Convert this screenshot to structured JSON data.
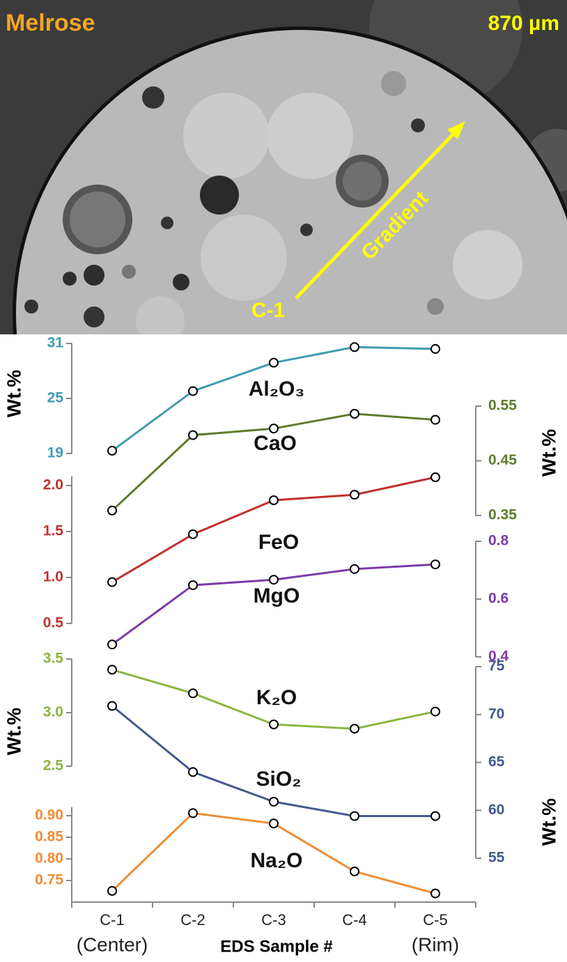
{
  "image": {
    "title": "Melrose",
    "scale": "870 µm",
    "arrow_label": "Gradient",
    "start_label": "C-1"
  },
  "chart_data": {
    "type": "line",
    "categories": [
      "C-1",
      "C-2",
      "C-3",
      "C-4",
      "C-5"
    ],
    "category_notes": [
      "(Center)",
      null,
      null,
      null,
      "(Rim)"
    ],
    "x_label": "EDS Sample #",
    "y_labels": [
      "Wt.%",
      "Wt.%",
      "Wt.%",
      "Wt.%"
    ],
    "series": [
      {
        "name": "Al₂O₃",
        "color": "#3f9bb3",
        "axis": "left",
        "values": [
          19.3,
          25.8,
          28.9,
          30.6,
          30.4
        ],
        "ylim": [
          19,
          31
        ],
        "yticks": [
          19,
          25,
          31
        ]
      },
      {
        "name": "CaO",
        "color": "#5f7a2b",
        "axis": "right",
        "values": [
          0.359,
          0.497,
          0.509,
          0.536,
          0.525
        ],
        "ylim": [
          0.35,
          0.55
        ],
        "yticks": [
          0.35,
          0.45,
          0.55
        ]
      },
      {
        "name": "FeO",
        "color": "#c0302f",
        "axis": "left",
        "values": [
          0.95,
          1.47,
          1.84,
          1.9,
          2.09
        ],
        "ylim": [
          0.5,
          2.1
        ],
        "yticks": [
          0.5,
          {
            "value": 1,
            "label": "1.0"
          },
          1.5,
          {
            "value": 2,
            "label": "2.0"
          }
        ]
      },
      {
        "name": "MgO",
        "color": "#7b3aa8",
        "axis": "right",
        "values": [
          0.443,
          0.648,
          0.667,
          0.704,
          0.72
        ],
        "ylim": [
          0.4,
          0.8
        ],
        "yticks": [
          0.4,
          0.6,
          0.8
        ]
      },
      {
        "name": "K₂O",
        "color": "#8ab540",
        "axis": "left",
        "values": [
          3.4,
          3.18,
          2.89,
          2.85,
          3.01
        ],
        "ylim": [
          2.5,
          3.5
        ],
        "yticks": [
          2.5,
          {
            "value": 3,
            "label": "3.0"
          },
          3.5
        ]
      },
      {
        "name": "SiO₂",
        "color": "#44598e",
        "axis": "right",
        "values": [
          70.9,
          64.0,
          60.9,
          59.4,
          59.4
        ],
        "ylim": [
          55,
          75
        ],
        "yticks": [
          55,
          60,
          65,
          70,
          75
        ]
      },
      {
        "name": "Na₂O",
        "color": "#f08c36",
        "axis": "left",
        "values": [
          0.726,
          0.906,
          0.882,
          0.771,
          0.72
        ],
        "ylim": [
          0.7,
          0.92
        ],
        "yticks": [
          0.75,
          {
            "value": 0.8,
            "label": "0.80"
          },
          0.85,
          {
            "value": 0.9,
            "label": "0.90"
          }
        ]
      }
    ]
  }
}
